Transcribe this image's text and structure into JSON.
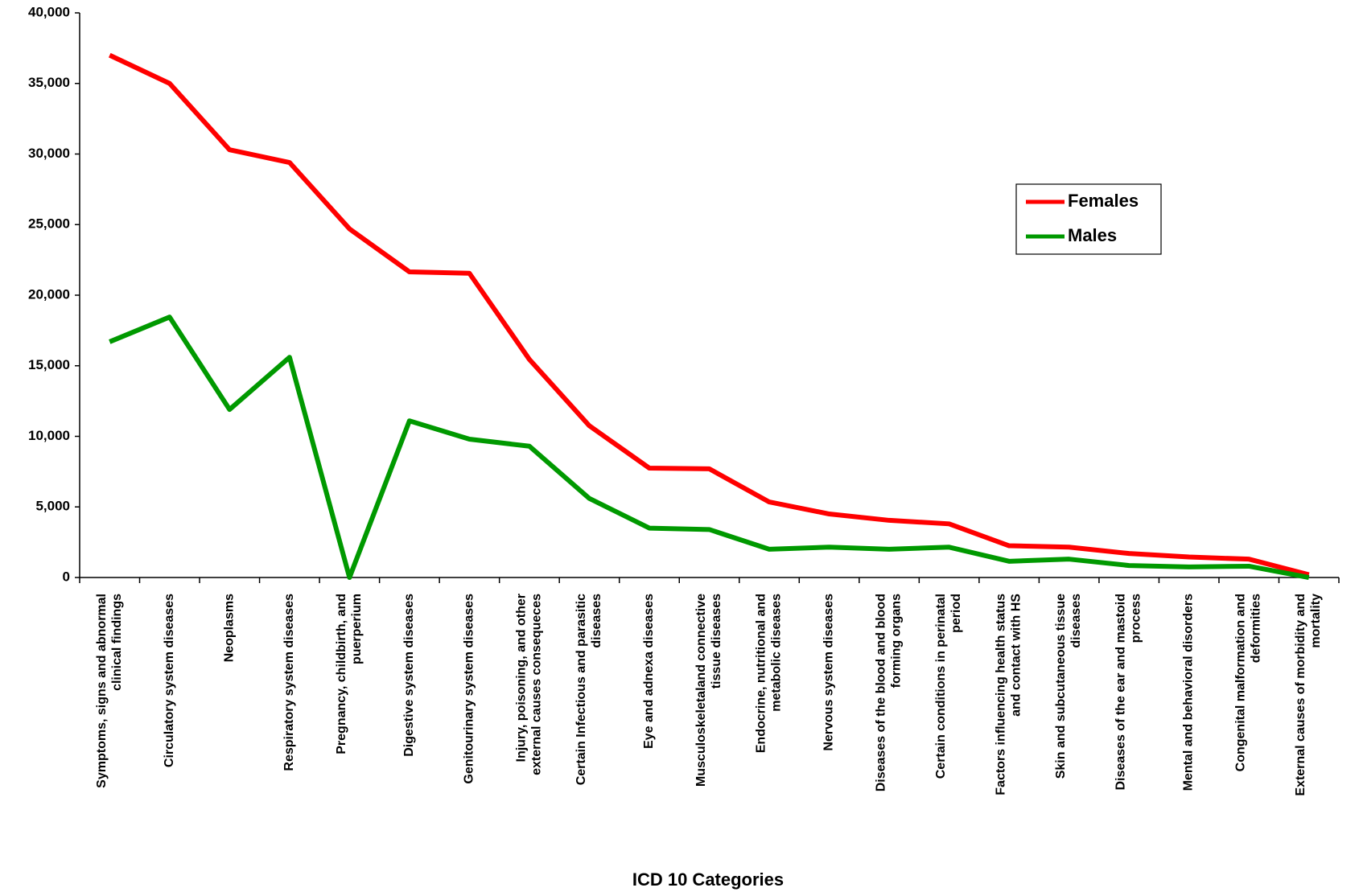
{
  "chart_data": {
    "type": "line",
    "x_label": "ICD 10 Categories",
    "categories": [
      "Symptoms, signs and abnormal clinical findings",
      "Circulatory system diseases",
      "Neoplasms",
      "Respiratory system diseases",
      "Pregnancy, childbirth, and puerperium",
      "Digestive system diseases",
      "Genitourinary system diseases",
      "Injury, poisoning, and other external causes consequeces",
      "Certain Infectious and parasitic diseases",
      "Eye and adnexa diseases",
      "Musculoskeletaland connective tissue diseases",
      "Endocrine, nutritional and metabolic diseases",
      "Nervous system diseases",
      "Diseases of the blood and blood forming organs",
      "Certain conditions in perinatal period",
      "Factors influencing health status and contact with HS",
      "Skin and subcutaneous tissue diseases",
      "Diseases of the ear and mastoid process",
      "Mental and behavioral disorders",
      "Congenital malformation and deformities",
      "External causes of morbidity and mortality"
    ],
    "series": [
      {
        "name": "Females",
        "color": "#ff0000",
        "values": [
          37000,
          35000,
          30300,
          29400,
          24700,
          21650,
          21550,
          15450,
          10750,
          7750,
          7700,
          5350,
          4500,
          4050,
          3800,
          2250,
          2150,
          1700,
          1450,
          1300,
          200
        ]
      },
      {
        "name": "Males",
        "color": "#009900",
        "values": [
          16700,
          18450,
          11900,
          15600,
          0,
          11100,
          9800,
          9300,
          5600,
          3500,
          3400,
          2000,
          2150,
          2000,
          2150,
          1150,
          1300,
          850,
          750,
          800,
          0
        ]
      }
    ],
    "ylim": [
      0,
      40000
    ],
    "yticks": [
      0,
      {
        "value": 5000,
        "label": "5,000"
      },
      {
        "value": 10000,
        "label": "10,000"
      },
      {
        "value": 15000,
        "label": "15,000"
      },
      {
        "value": 20000,
        "label": "20,000"
      },
      {
        "value": 25000,
        "label": "25,000"
      },
      {
        "value": 30000,
        "label": "30,000"
      },
      {
        "value": 35000,
        "label": "35,000"
      },
      {
        "value": 40000,
        "label": "40,000"
      }
    ],
    "grid": false,
    "legend": "right"
  }
}
